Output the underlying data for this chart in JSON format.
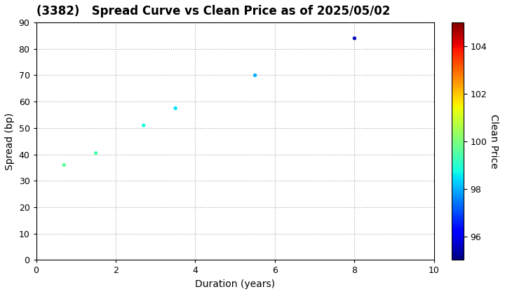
{
  "title": "(3382)   Spread Curve vs Clean Price as of 2025/05/02",
  "xlabel": "Duration (years)",
  "ylabel": "Spread (bp)",
  "colorbar_label": "Clean Price",
  "xlim": [
    0,
    10
  ],
  "ylim": [
    0,
    90
  ],
  "xticks": [
    0,
    2,
    4,
    6,
    8,
    10
  ],
  "yticks": [
    0,
    10,
    20,
    30,
    40,
    50,
    60,
    70,
    80,
    90
  ],
  "colorbar_min": 95,
  "colorbar_max": 105,
  "colorbar_ticks": [
    96,
    98,
    100,
    102,
    104
  ],
  "points": [
    {
      "duration": 0.7,
      "spread": 36,
      "clean_price": 99.6
    },
    {
      "duration": 1.5,
      "spread": 40.5,
      "clean_price": 99.4
    },
    {
      "duration": 2.7,
      "spread": 51,
      "clean_price": 98.8
    },
    {
      "duration": 3.5,
      "spread": 57.5,
      "clean_price": 98.5
    },
    {
      "duration": 5.5,
      "spread": 70,
      "clean_price": 98.0
    },
    {
      "duration": 8.0,
      "spread": 84,
      "clean_price": 95.5
    }
  ],
  "marker_size": 15,
  "background_color": "#ffffff",
  "grid_color": "#aaaaaa",
  "title_fontsize": 12,
  "label_fontsize": 10,
  "tick_fontsize": 9,
  "colorbar_label_fontsize": 10
}
